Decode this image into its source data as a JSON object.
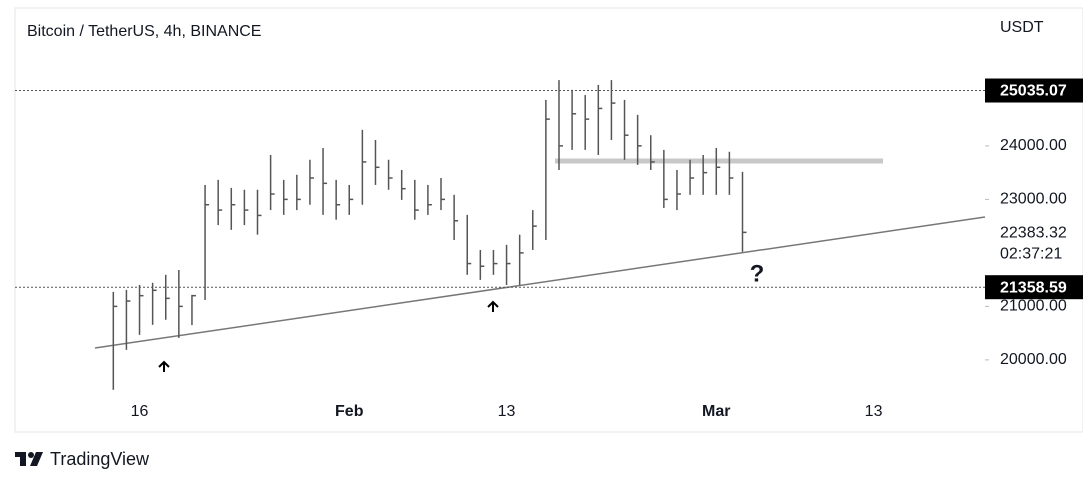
{
  "chart_data": {
    "type": "ohlc",
    "title": "Bitcoin / TetherUS, 4h, BINANCE",
    "currency": "USDT",
    "brand": "TradingView",
    "annotation": "?",
    "categories": [
      null,
      null,
      null,
      null,
      null,
      null,
      null,
      null,
      null,
      "16",
      null,
      null,
      null,
      null,
      null,
      null,
      null,
      null,
      null,
      null,
      null,
      null,
      null,
      null,
      null,
      "Feb",
      null,
      null,
      null,
      null,
      null,
      null,
      null,
      null,
      null,
      null,
      null,
      "13",
      null,
      null,
      null,
      null,
      null,
      null,
      null,
      null,
      null,
      null,
      null,
      null,
      null,
      null,
      null,
      "Mar",
      null,
      null,
      null,
      null,
      null,
      null,
      null,
      null,
      null,
      null,
      null,
      "13",
      null,
      null,
      null,
      null,
      null,
      null,
      null,
      null
    ],
    "high": [
      null,
      null,
      null,
      null,
      null,
      null,
      null,
      21271,
      21308,
      21400,
      21440,
      21590,
      21680,
      21215,
      23270,
      23365,
      23215,
      23180,
      23180,
      23830,
      23365,
      23460,
      23740,
      23960,
      23365,
      23270,
      24300,
      24110,
      23740,
      23550,
      23365,
      23270,
      23400,
      23085,
      22710,
      22055,
      22055,
      22150,
      22340,
      22800,
      24860,
      25230,
      25047,
      24950,
      25140,
      25230,
      24860,
      24580,
      24200,
      23925,
      23550,
      23740,
      23830,
      23960,
      23890,
      23515,
      null,
      null,
      null,
      null,
      null,
      null,
      null,
      null,
      null,
      null,
      null,
      null,
      null,
      null,
      null,
      null,
      null,
      null
    ],
    "low": [
      null,
      null,
      null,
      null,
      null,
      null,
      null,
      19440,
      20187,
      20467,
      20655,
      20750,
      20410,
      20650,
      21120,
      22520,
      22430,
      22520,
      22340,
      22800,
      22710,
      22800,
      22900,
      22710,
      22620,
      22710,
      22900,
      23270,
      23180,
      22990,
      22620,
      22710,
      22800,
      22240,
      21590,
      21495,
      21590,
      21400,
      21400,
      22055,
      22240,
      23550,
      23925,
      23925,
      23830,
      24110,
      23740,
      23645,
      23550,
      22840,
      22800,
      23085,
      23085,
      23085,
      23085,
      22020,
      null,
      null,
      null,
      null,
      null,
      null,
      null,
      null,
      null,
      null,
      null,
      null,
      null,
      null,
      null,
      null,
      null,
      null
    ],
    "close": [
      null,
      null,
      null,
      null,
      null,
      null,
      null,
      21000,
      21100,
      21200,
      21300,
      21150,
      21000,
      21200,
      22900,
      22800,
      22900,
      22800,
      22700,
      23100,
      23000,
      23000,
      23400,
      23300,
      22900,
      23000,
      23700,
      23600,
      23400,
      23200,
      22800,
      22900,
      23000,
      22600,
      21800,
      21750,
      21800,
      21800,
      22000,
      22500,
      24500,
      24000,
      24600,
      24500,
      24700,
      24800,
      24200,
      24000,
      23700,
      23000,
      23100,
      23400,
      23500,
      23600,
      23400,
      22383.32,
      null,
      null,
      null,
      null,
      null,
      null,
      null,
      null,
      null,
      null,
      null,
      null,
      null,
      null,
      null,
      null,
      null,
      null
    ],
    "color": "#555555",
    "countdown": "02:37:21",
    "price_lines": [
      25035.07,
      21358.59
    ],
    "ylim": [
      19250,
      26540
    ],
    "yticks": [
      {
        "value": 20000,
        "label": "20000.00"
      },
      {
        "value": 21000,
        "label": "21000.00"
      },
      {
        "value": 23000,
        "label": "23000.00"
      },
      {
        "value": 24000,
        "label": "24000.00"
      }
    ]
  }
}
